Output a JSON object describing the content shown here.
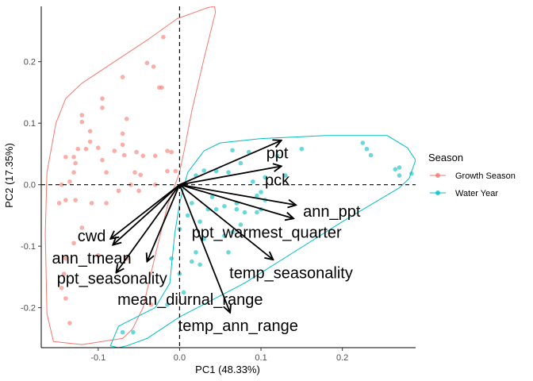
{
  "chart_data": {
    "type": "scatter",
    "subtype": "pca-biplot",
    "xlabel": "PC1 (48.33%)",
    "ylabel": "PC2 (17.35%)",
    "xlim": [
      -0.17,
      0.29
    ],
    "ylim": [
      -0.265,
      0.29
    ],
    "x_ticks": [
      -0.1,
      0.0,
      0.1,
      0.2
    ],
    "x_tick_labels": [
      "-0.1",
      "0.0",
      "0.1",
      "0.2"
    ],
    "y_ticks": [
      -0.2,
      -0.1,
      0.0,
      0.1,
      0.2
    ],
    "y_tick_labels": [
      "-0.2",
      "-0.1",
      "0.0",
      "0.1",
      "0.2"
    ],
    "grid": false,
    "reference_lines": {
      "x": 0,
      "y": 0,
      "style": "dashed"
    },
    "legend": {
      "title": "Season",
      "placement": "right",
      "entries": [
        {
          "label": "Growth Season",
          "color": "#F8766D"
        },
        {
          "label": "Water Year",
          "color": "#00BFC4"
        }
      ]
    },
    "series": [
      {
        "color": "#F8766D",
        "points": [
          [
            -0.02,
            0.24
          ],
          [
            -0.04,
            0.198
          ],
          [
            -0.032,
            0.192
          ],
          [
            -0.025,
            0.158
          ],
          [
            -0.022,
            0.158
          ],
          [
            -0.07,
            0.175
          ],
          [
            -0.095,
            0.14
          ],
          [
            -0.095,
            0.125
          ],
          [
            -0.12,
            0.113
          ],
          [
            -0.12,
            0.102
          ],
          [
            -0.11,
            0.087
          ],
          [
            -0.065,
            0.107
          ],
          [
            -0.07,
            0.083
          ],
          [
            -0.07,
            0.065
          ],
          [
            -0.068,
            0.048
          ],
          [
            -0.053,
            0.053
          ],
          [
            -0.045,
            0.047
          ],
          [
            -0.03,
            0.047
          ],
          [
            -0.015,
            0.055
          ],
          [
            -0.01,
            0.053
          ],
          [
            -0.08,
            0.055
          ],
          [
            -0.1,
            0.06
          ],
          [
            -0.11,
            0.07
          ],
          [
            -0.115,
            0.058
          ],
          [
            -0.125,
            0.058
          ],
          [
            -0.13,
            0.045
          ],
          [
            -0.14,
            0.045
          ],
          [
            -0.128,
            0.035
          ],
          [
            -0.095,
            0.04
          ],
          [
            -0.09,
            0.02
          ],
          [
            -0.13,
            0.02
          ],
          [
            -0.135,
            0.005
          ],
          [
            -0.055,
            0.02
          ],
          [
            -0.048,
            0.016
          ],
          [
            -0.005,
            0.022
          ],
          [
            -0.015,
            0.022
          ],
          [
            -0.03,
            0.0
          ],
          [
            -0.06,
            0.0
          ],
          [
            -0.145,
            0.0
          ],
          [
            -0.075,
            -0.01
          ],
          [
            -0.05,
            -0.01
          ],
          [
            -0.09,
            -0.03
          ],
          [
            -0.108,
            -0.03
          ],
          [
            -0.128,
            -0.025
          ],
          [
            -0.14,
            -0.025
          ],
          [
            -0.148,
            -0.03
          ],
          [
            -0.12,
            -0.07
          ],
          [
            -0.13,
            -0.095
          ],
          [
            -0.14,
            -0.12
          ],
          [
            -0.142,
            -0.145
          ],
          [
            -0.145,
            -0.168
          ],
          [
            -0.14,
            -0.185
          ],
          [
            -0.1,
            -0.115
          ],
          [
            -0.065,
            -0.12
          ],
          [
            -0.135,
            -0.225
          ],
          [
            -0.035,
            -0.195
          ]
        ]
      },
      {
        "color": "#00BFC4",
        "points": [
          [
            0.225,
            0.068
          ],
          [
            0.23,
            0.058
          ],
          [
            0.235,
            0.048
          ],
          [
            0.15,
            0.058
          ],
          [
            0.12,
            0.047
          ],
          [
            0.085,
            0.053
          ],
          [
            0.065,
            0.056
          ],
          [
            0.075,
            0.035
          ],
          [
            0.06,
            0.02
          ],
          [
            0.045,
            0.022
          ],
          [
            0.03,
            0.023
          ],
          [
            0.02,
            0.015
          ],
          [
            0.13,
            0.015
          ],
          [
            0.105,
            0.012
          ],
          [
            0.09,
            0.005
          ],
          [
            0.1,
            -0.012
          ],
          [
            0.095,
            -0.018
          ],
          [
            0.07,
            -0.03
          ],
          [
            0.04,
            -0.02
          ],
          [
            0.035,
            -0.04
          ],
          [
            0.045,
            -0.04
          ],
          [
            0.055,
            -0.035
          ],
          [
            0.07,
            -0.04
          ],
          [
            0.08,
            -0.045
          ],
          [
            0.095,
            -0.045
          ],
          [
            0.1,
            -0.04
          ],
          [
            0.105,
            -0.025
          ],
          [
            0.015,
            -0.03
          ],
          [
            0.025,
            -0.06
          ],
          [
            0.01,
            -0.05
          ],
          [
            0.0,
            -0.072
          ],
          [
            0.075,
            -0.065
          ],
          [
            0.065,
            -0.077
          ],
          [
            0.055,
            -0.083
          ],
          [
            0.03,
            -0.088
          ],
          [
            0.06,
            -0.11
          ],
          [
            0.02,
            -0.11
          ],
          [
            0.015,
            -0.125
          ],
          [
            -0.01,
            -0.12
          ],
          [
            0.025,
            -0.13
          ],
          [
            0.0,
            -0.145
          ],
          [
            0.005,
            -0.175
          ],
          [
            -0.015,
            -0.195
          ],
          [
            0.265,
            0.025
          ],
          [
            0.27,
            0.015
          ],
          [
            0.27,
            0.028
          ],
          [
            0.285,
            0.018
          ],
          [
            -0.07,
            -0.24
          ],
          [
            -0.057,
            -0.24
          ]
        ]
      }
    ],
    "loadings": [
      {
        "name": "ppt",
        "x": 0.125,
        "y": 0.072
      },
      {
        "name": "pck",
        "x": 0.125,
        "y": 0.03
      },
      {
        "name": "ann_ppt",
        "x": 0.143,
        "y": -0.033
      },
      {
        "name": "ppt_warmest_quarter",
        "x": 0.14,
        "y": -0.055
      },
      {
        "name": "temp_seasonality",
        "x": 0.115,
        "y": -0.122
      },
      {
        "name": "temp_ann_range",
        "x": 0.062,
        "y": -0.208
      },
      {
        "name": "mean_diurnal_range",
        "x": -0.04,
        "y": -0.125
      },
      {
        "name": "cwd",
        "x": -0.085,
        "y": -0.088
      },
      {
        "name": "ann_tmean",
        "x": -0.082,
        "y": -0.098
      },
      {
        "name": "ppt_seasonality",
        "x": -0.078,
        "y": -0.143
      }
    ],
    "loading_labels": [
      {
        "name": "ppt",
        "x": 0.12,
        "y": 0.052
      },
      {
        "name": "pck",
        "x": 0.12,
        "y": 0.008
      },
      {
        "name": "ann_ppt",
        "x": 0.187,
        "y": -0.043
      },
      {
        "name": "ppt_warmest_quarter",
        "x": 0.107,
        "y": -0.077
      },
      {
        "name": "temp_seasonality",
        "x": 0.137,
        "y": -0.143
      },
      {
        "name": "temp_ann_range",
        "x": 0.072,
        "y": -0.229
      },
      {
        "name": "mean_diurnal_range",
        "x": 0.013,
        "y": -0.186
      },
      {
        "name": "cwd",
        "x": -0.108,
        "y": -0.083
      },
      {
        "name": "ann_tmean",
        "x": -0.108,
        "y": -0.119
      },
      {
        "name": "ppt_seasonality",
        "x": -0.083,
        "y": -0.152
      }
    ],
    "hulls": [
      {
        "color": "#F8766D",
        "points": [
          [
            -0.003,
            0.27
          ],
          [
            0.035,
            0.288
          ],
          [
            0.043,
            0.29
          ],
          [
            0.044,
            0.28
          ],
          [
            0.03,
            0.205
          ],
          [
            0.015,
            0.12
          ],
          [
            0.006,
            0.058
          ],
          [
            0.0,
            0.02
          ],
          [
            -0.015,
            -0.035
          ],
          [
            -0.03,
            -0.115
          ],
          [
            -0.045,
            -0.2
          ],
          [
            -0.058,
            -0.235
          ],
          [
            -0.07,
            -0.25
          ],
          [
            -0.12,
            -0.26
          ],
          [
            -0.155,
            -0.255
          ],
          [
            -0.163,
            -0.21
          ],
          [
            -0.165,
            -0.08
          ],
          [
            -0.163,
            0.02
          ],
          [
            -0.152,
            0.1
          ],
          [
            -0.14,
            0.14
          ],
          [
            -0.12,
            0.165
          ],
          [
            -0.08,
            0.2
          ],
          [
            -0.04,
            0.235
          ]
        ]
      },
      {
        "color": "#00BFC4",
        "points": [
          [
            0.03,
            0.055
          ],
          [
            0.05,
            0.068
          ],
          [
            0.1,
            0.075
          ],
          [
            0.18,
            0.08
          ],
          [
            0.255,
            0.08
          ],
          [
            0.28,
            0.06
          ],
          [
            0.29,
            0.04
          ],
          [
            0.282,
            0.01
          ],
          [
            0.27,
            -0.005
          ],
          [
            0.2,
            -0.06
          ],
          [
            0.08,
            -0.16
          ],
          [
            0.0,
            -0.215
          ],
          [
            -0.04,
            -0.25
          ],
          [
            -0.065,
            -0.262
          ],
          [
            -0.075,
            -0.265
          ],
          [
            -0.085,
            -0.262
          ],
          [
            -0.075,
            -0.23
          ],
          [
            -0.03,
            -0.2
          ],
          [
            -0.012,
            -0.16
          ],
          [
            -0.006,
            -0.08
          ],
          [
            0.0,
            -0.03
          ],
          [
            0.01,
            0.02
          ]
        ]
      }
    ]
  }
}
